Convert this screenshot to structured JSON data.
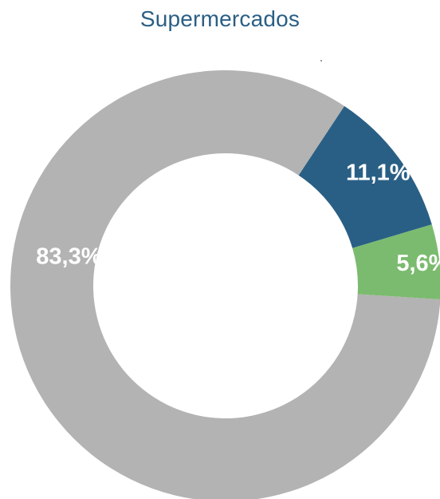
{
  "chart_data": {
    "type": "pie",
    "title": "Supermercados",
    "donut": true,
    "slices": [
      {
        "label": "11,1%",
        "value": 11.1,
        "color": "#2a5f85"
      },
      {
        "label": "5,6%",
        "value": 5.6,
        "color": "#7bbb6f"
      },
      {
        "label": "83,3%",
        "value": 83.3,
        "color": "#b2b3b2"
      }
    ],
    "title_color": "#2a5f85",
    "label_color": "#ffffff",
    "legend": "none"
  }
}
